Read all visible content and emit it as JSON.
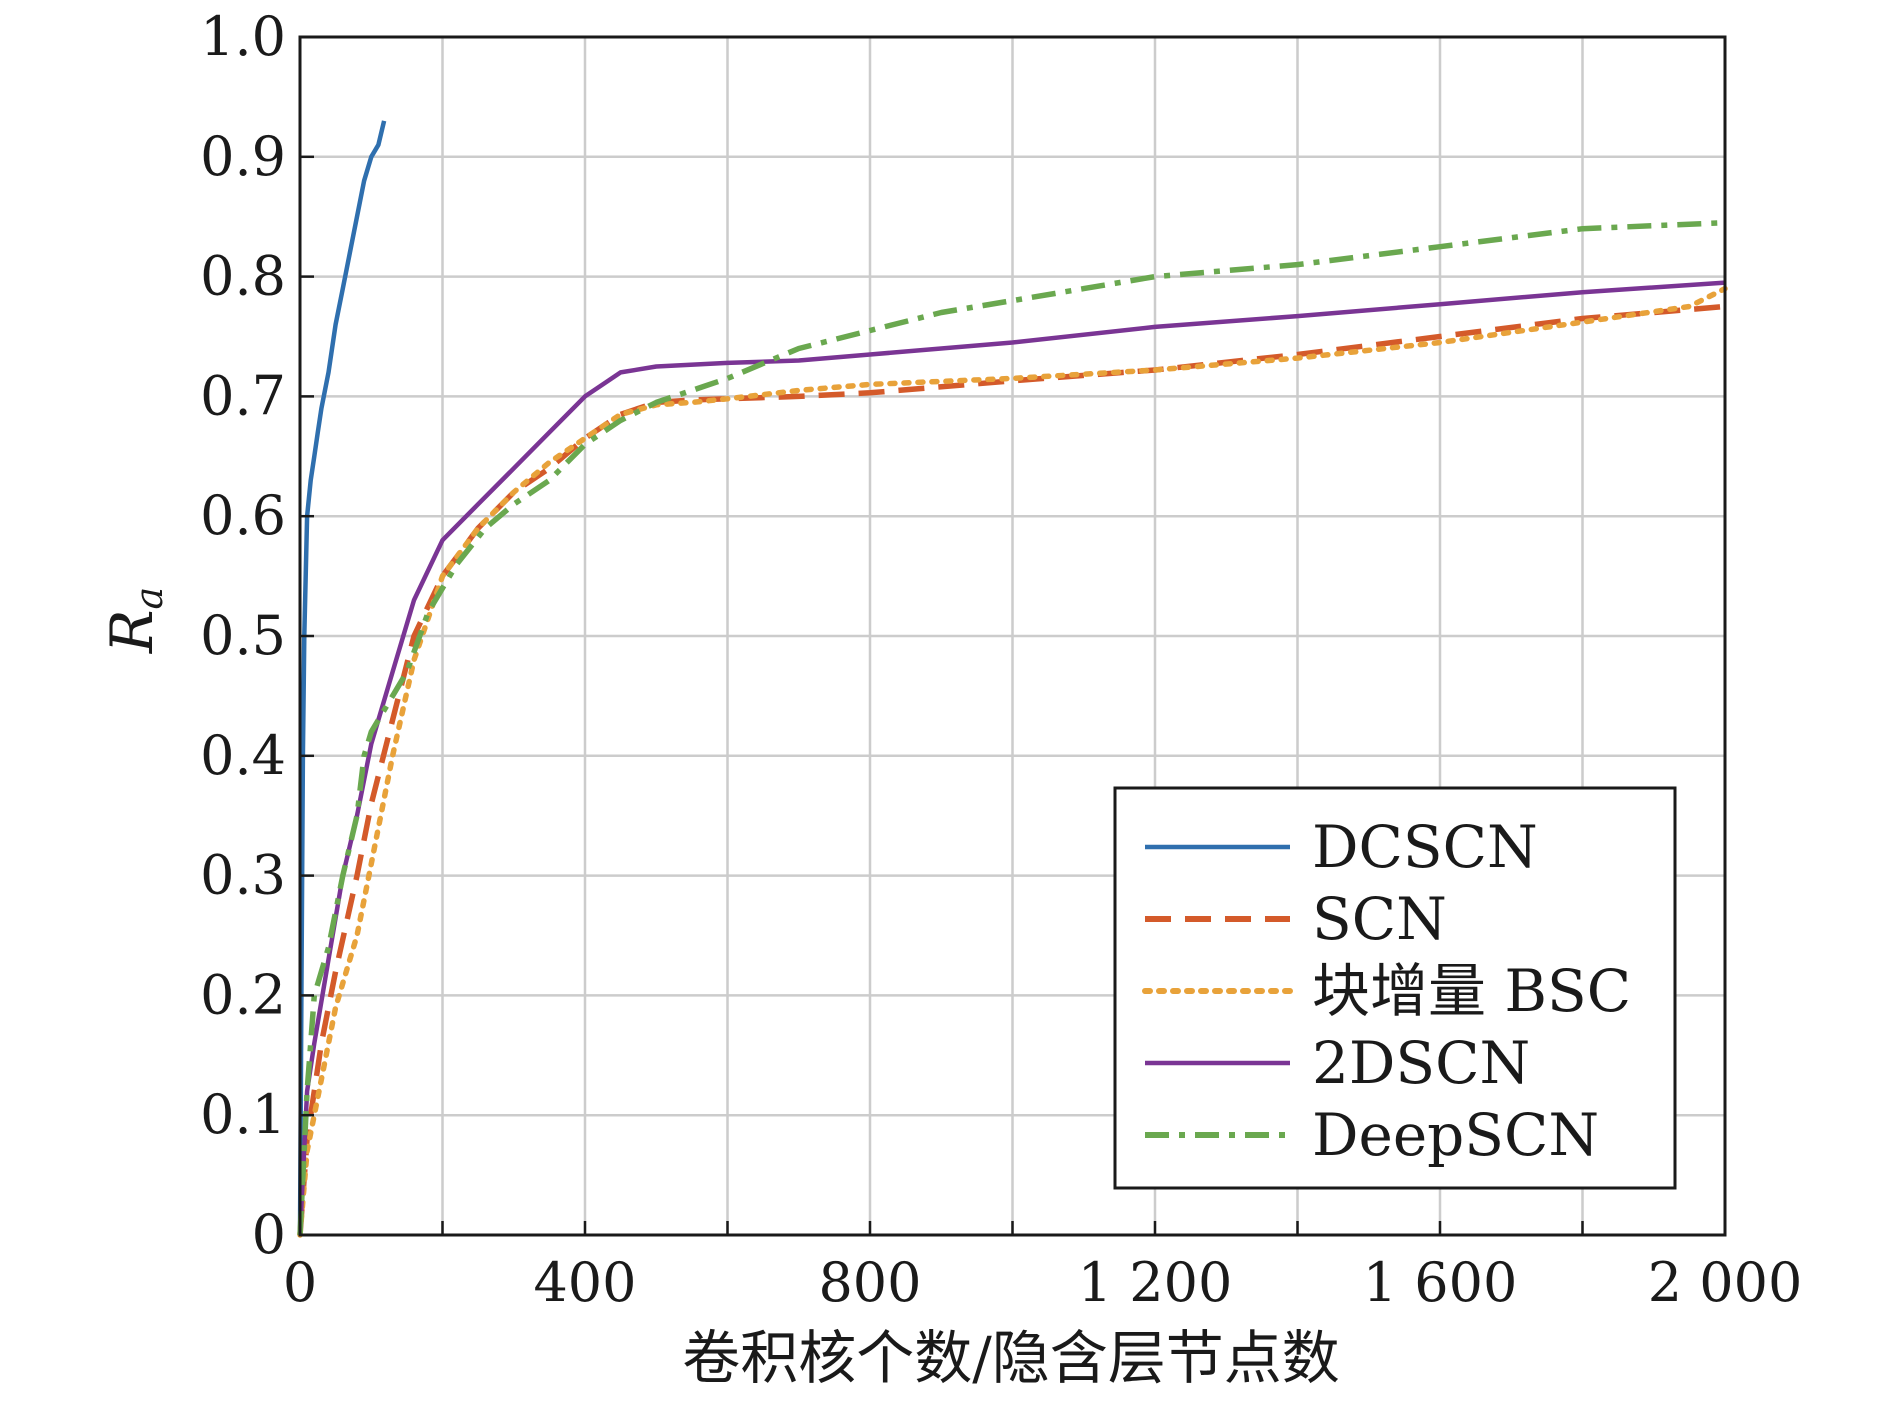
{
  "chart_data": {
    "type": "line",
    "title": "",
    "xlabel": "卷积核个数/隐含层节点数",
    "ylabel": "R_a",
    "ylabel_main": "R",
    "ylabel_sub": "a",
    "xlim": [
      0,
      2000
    ],
    "ylim": [
      0,
      1.0
    ],
    "x_ticks": [
      0,
      400,
      800,
      1200,
      1600,
      2000
    ],
    "x_tick_labels": [
      "0",
      "400",
      "800",
      "1 200",
      "1 600",
      "2 000"
    ],
    "x_minor_ticks": [
      200,
      600,
      1000,
      1400,
      1800
    ],
    "y_ticks": [
      0,
      0.1,
      0.2,
      0.3,
      0.4,
      0.5,
      0.6,
      0.7,
      0.8,
      0.9,
      1.0
    ],
    "y_tick_labels": [
      "0",
      "0.1",
      "0.2",
      "0.3",
      "0.4",
      "0.5",
      "0.6",
      "0.7",
      "0.8",
      "0.9",
      "1.0"
    ],
    "grid": true,
    "legend_position": "bottom-right",
    "series": [
      {
        "name": "DCSCN",
        "color": "#2f6fae",
        "style": "solid",
        "x": [
          0,
          2,
          4,
          6,
          10,
          15,
          20,
          25,
          30,
          40,
          50,
          60,
          70,
          80,
          90,
          100,
          110,
          118
        ],
        "y": [
          0.0,
          0.2,
          0.4,
          0.5,
          0.6,
          0.63,
          0.65,
          0.67,
          0.69,
          0.72,
          0.76,
          0.79,
          0.82,
          0.85,
          0.88,
          0.9,
          0.91,
          0.93
        ]
      },
      {
        "name": "SCN",
        "color": "#d45a2a",
        "style": "dashed",
        "x": [
          0,
          10,
          30,
          50,
          80,
          100,
          130,
          160,
          200,
          250,
          300,
          350,
          400,
          450,
          500,
          550,
          600,
          700,
          800,
          1000,
          1200,
          1400,
          1600,
          1800,
          2000
        ],
        "y": [
          0.0,
          0.08,
          0.16,
          0.22,
          0.3,
          0.36,
          0.43,
          0.5,
          0.55,
          0.59,
          0.62,
          0.64,
          0.665,
          0.685,
          0.695,
          0.697,
          0.698,
          0.7,
          0.703,
          0.713,
          0.722,
          0.735,
          0.75,
          0.765,
          0.775
        ]
      },
      {
        "name": "块增量 BSC",
        "color": "#e8a23a",
        "style": "dotted",
        "x": [
          0,
          10,
          30,
          50,
          80,
          100,
          130,
          160,
          200,
          250,
          300,
          350,
          400,
          450,
          500,
          550,
          600,
          700,
          800,
          1000,
          1200,
          1400,
          1600,
          1800,
          1950,
          2000
        ],
        "y": [
          0.0,
          0.07,
          0.13,
          0.19,
          0.25,
          0.31,
          0.4,
          0.48,
          0.55,
          0.59,
          0.62,
          0.645,
          0.665,
          0.685,
          0.693,
          0.695,
          0.698,
          0.705,
          0.71,
          0.715,
          0.722,
          0.732,
          0.745,
          0.762,
          0.775,
          0.79
        ]
      },
      {
        "name": "2DSCN",
        "color": "#7a3594",
        "style": "solid",
        "x": [
          0,
          10,
          20,
          40,
          60,
          80,
          100,
          130,
          160,
          200,
          250,
          300,
          350,
          400,
          450,
          500,
          600,
          700,
          800,
          1000,
          1200,
          1400,
          1600,
          1800,
          2000
        ],
        "y": [
          0.0,
          0.12,
          0.16,
          0.23,
          0.3,
          0.35,
          0.41,
          0.47,
          0.53,
          0.58,
          0.61,
          0.64,
          0.67,
          0.7,
          0.72,
          0.725,
          0.728,
          0.73,
          0.735,
          0.745,
          0.758,
          0.767,
          0.777,
          0.787,
          0.795
        ]
      },
      {
        "name": "DeepSCN",
        "color": "#6aa84f",
        "style": "dashdot",
        "x": [
          0,
          10,
          20,
          40,
          60,
          80,
          90,
          100,
          120,
          150,
          180,
          220,
          260,
          300,
          350,
          400,
          450,
          500,
          550,
          600,
          700,
          800,
          900,
          1000,
          1100,
          1200,
          1400,
          1600,
          1800,
          2000
        ],
        "y": [
          0.0,
          0.12,
          0.2,
          0.24,
          0.3,
          0.35,
          0.4,
          0.42,
          0.44,
          0.47,
          0.52,
          0.56,
          0.59,
          0.61,
          0.63,
          0.66,
          0.68,
          0.695,
          0.705,
          0.715,
          0.74,
          0.755,
          0.77,
          0.78,
          0.79,
          0.8,
          0.81,
          0.825,
          0.84,
          0.845
        ]
      }
    ]
  }
}
